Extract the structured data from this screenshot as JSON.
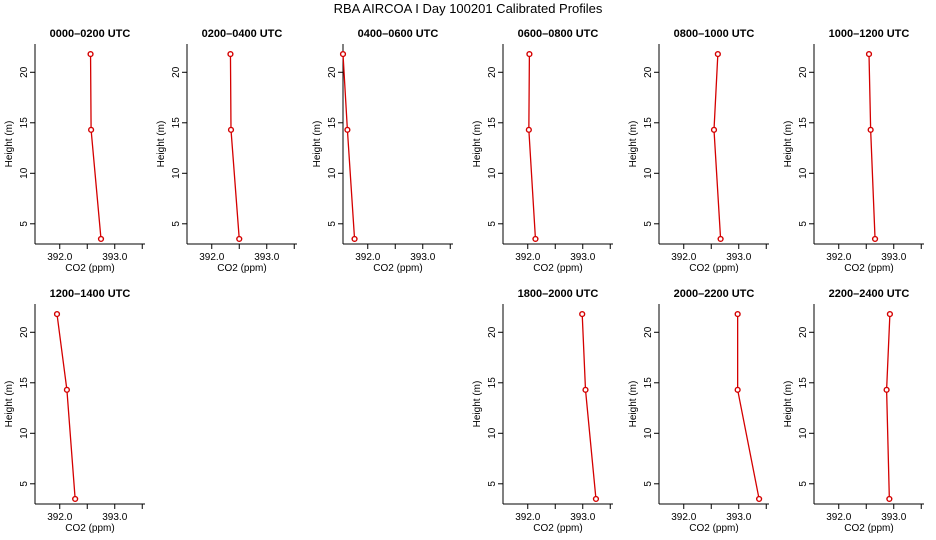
{
  "figure": {
    "title": "RBA AIRCOA I  Day 100201  Calibrated Profiles"
  },
  "chart_data": [
    {
      "type": "line",
      "title": "0000–0200 UTC",
      "xlabel": "CO2 (ppm)",
      "ylabel": "Height (m)",
      "x_ticks": [
        "392.0",
        "393.0"
      ],
      "y_ticks": [
        "5",
        "10",
        "15",
        "20"
      ],
      "xlim": [
        391.55,
        393.55
      ],
      "ylim": [
        3.0,
        22.8
      ],
      "series": [
        {
          "points": [
            {
              "x": 392.75,
              "y": 3.5
            },
            {
              "x": 392.57,
              "y": 14.3
            },
            {
              "x": 392.56,
              "y": 21.8
            }
          ]
        }
      ]
    },
    {
      "type": "line",
      "title": "0200–0400 UTC",
      "xlabel": "CO2 (ppm)",
      "ylabel": "Height (m)",
      "x_ticks": [
        "392.0",
        "393.0"
      ],
      "y_ticks": [
        "5",
        "10",
        "15",
        "20"
      ],
      "xlim": [
        391.55,
        393.55
      ],
      "ylim": [
        3.0,
        22.8
      ],
      "series": [
        {
          "points": [
            {
              "x": 392.5,
              "y": 3.5
            },
            {
              "x": 392.35,
              "y": 14.3
            },
            {
              "x": 392.34,
              "y": 21.8
            }
          ]
        }
      ]
    },
    {
      "type": "line",
      "title": "0400–0600 UTC",
      "xlabel": "CO2 (ppm)",
      "ylabel": "Height (m)",
      "x_ticks": [
        "392.0",
        "393.0"
      ],
      "y_ticks": [
        "5",
        "10",
        "15",
        "20"
      ],
      "xlim": [
        391.55,
        393.55
      ],
      "ylim": [
        3.0,
        22.8
      ],
      "series": [
        {
          "points": [
            {
              "x": 391.76,
              "y": 3.5
            },
            {
              "x": 391.63,
              "y": 14.3
            },
            {
              "x": 391.55,
              "y": 21.8
            }
          ]
        }
      ]
    },
    {
      "type": "line",
      "title": "0600–0800 UTC",
      "xlabel": "CO2 (ppm)",
      "ylabel": "Height (m)",
      "x_ticks": [
        "392.0",
        "393.0"
      ],
      "y_ticks": [
        "5",
        "10",
        "15",
        "20"
      ],
      "xlim": [
        391.55,
        393.55
      ],
      "ylim": [
        3.0,
        22.8
      ],
      "series": [
        {
          "points": [
            {
              "x": 392.14,
              "y": 3.5
            },
            {
              "x": 392.02,
              "y": 14.3
            },
            {
              "x": 392.03,
              "y": 21.8
            }
          ]
        }
      ]
    },
    {
      "type": "line",
      "title": "0800–1000 UTC",
      "xlabel": "CO2 (ppm)",
      "ylabel": "Height (m)",
      "x_ticks": [
        "392.0",
        "393.0"
      ],
      "y_ticks": [
        "5",
        "10",
        "15",
        "20"
      ],
      "xlim": [
        391.55,
        393.55
      ],
      "ylim": [
        3.0,
        22.8
      ],
      "series": [
        {
          "points": [
            {
              "x": 392.67,
              "y": 3.5
            },
            {
              "x": 392.55,
              "y": 14.3
            },
            {
              "x": 392.62,
              "y": 21.8
            }
          ]
        }
      ]
    },
    {
      "type": "line",
      "title": "1000–1200 UTC",
      "xlabel": "CO2 (ppm)",
      "ylabel": "Height (m)",
      "x_ticks": [
        "392.0",
        "393.0"
      ],
      "y_ticks": [
        "5",
        "10",
        "15",
        "20"
      ],
      "xlim": [
        391.55,
        393.55
      ],
      "ylim": [
        3.0,
        22.8
      ],
      "series": [
        {
          "points": [
            {
              "x": 392.66,
              "y": 3.5
            },
            {
              "x": 392.58,
              "y": 14.3
            },
            {
              "x": 392.55,
              "y": 21.8
            }
          ]
        }
      ]
    },
    {
      "type": "line",
      "title": "1200–1400 UTC",
      "xlabel": "CO2 (ppm)",
      "ylabel": "Height (m)",
      "x_ticks": [
        "392.0",
        "393.0"
      ],
      "y_ticks": [
        "5",
        "10",
        "15",
        "20"
      ],
      "xlim": [
        391.55,
        393.55
      ],
      "ylim": [
        3.0,
        22.8
      ],
      "series": [
        {
          "points": [
            {
              "x": 392.28,
              "y": 3.5
            },
            {
              "x": 392.13,
              "y": 14.3
            },
            {
              "x": 391.95,
              "y": 21.8
            }
          ]
        }
      ]
    },
    {
      "type": "line",
      "title": "1800–2000 UTC",
      "xlabel": "CO2 (ppm)",
      "ylabel": "Height (m)",
      "x_ticks": [
        "392.0",
        "393.0"
      ],
      "y_ticks": [
        "5",
        "10",
        "15",
        "20"
      ],
      "xlim": [
        391.55,
        393.55
      ],
      "ylim": [
        3.0,
        22.8
      ],
      "series": [
        {
          "points": [
            {
              "x": 393.24,
              "y": 3.5
            },
            {
              "x": 393.05,
              "y": 14.3
            },
            {
              "x": 392.99,
              "y": 21.8
            }
          ]
        }
      ]
    },
    {
      "type": "line",
      "title": "2000–2200 UTC",
      "xlabel": "CO2 (ppm)",
      "ylabel": "Height (m)",
      "x_ticks": [
        "392.0",
        "393.0"
      ],
      "y_ticks": [
        "5",
        "10",
        "15",
        "20"
      ],
      "xlim": [
        391.55,
        393.55
      ],
      "ylim": [
        3.0,
        22.8
      ],
      "series": [
        {
          "points": [
            {
              "x": 393.37,
              "y": 3.5
            },
            {
              "x": 392.98,
              "y": 14.3
            },
            {
              "x": 392.98,
              "y": 21.8
            }
          ]
        }
      ]
    },
    {
      "type": "line",
      "title": "2200–2400 UTC",
      "xlabel": "CO2 (ppm)",
      "ylabel": "Height (m)",
      "x_ticks": [
        "392.0",
        "393.0"
      ],
      "y_ticks": [
        "5",
        "10",
        "15",
        "20"
      ],
      "xlim": [
        391.55,
        393.55
      ],
      "ylim": [
        3.0,
        22.8
      ],
      "series": [
        {
          "points": [
            {
              "x": 392.92,
              "y": 3.5
            },
            {
              "x": 392.87,
              "y": 14.3
            },
            {
              "x": 392.93,
              "y": 21.8
            }
          ]
        }
      ]
    }
  ],
  "style": {
    "line_color": "#d40000",
    "axis_color": "#000000",
    "background": "#ffffff"
  }
}
